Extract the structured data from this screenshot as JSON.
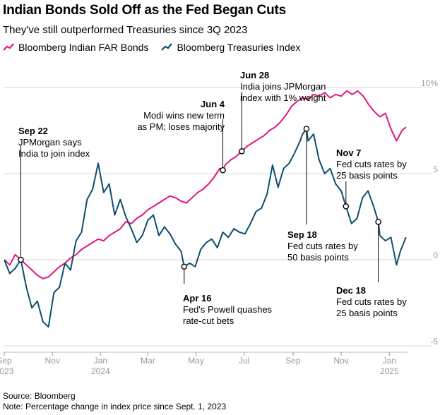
{
  "header": {
    "title": "Indian Bonds Sold Off as the Fed Began Cuts",
    "subtitle": "They've still outperformed Treasuries since 3Q 2023"
  },
  "footer": {
    "source": "Source: Bloomberg",
    "note": "Note: Percentage change in index price since Sept. 1, 2023"
  },
  "colors": {
    "india": "#e2167e",
    "treasuries": "#0e4e6e",
    "grid": "#d9d9d9",
    "tick": "#999999"
  },
  "chart_data": {
    "type": "line",
    "title": "Indian Bonds Sold Off as the Fed Began Cuts",
    "subtitle": "They've still outperformed Treasuries since 3Q 2023",
    "ylim": [
      -5,
      10
    ],
    "y_ticks": [
      10,
      5,
      0,
      -5
    ],
    "y_tick_labels": [
      "10%",
      "5",
      "0",
      "-5"
    ],
    "x_range": [
      "2023-09-01",
      "2025-01-24"
    ],
    "x_ticks": [
      {
        "date": "2023-09-01",
        "label": "Sep",
        "year": "2023"
      },
      {
        "date": "2023-11-01",
        "label": "Nov",
        "year": ""
      },
      {
        "date": "2024-01-01",
        "label": "Jan",
        "year": "2024"
      },
      {
        "date": "2024-03-01",
        "label": "Mar",
        "year": ""
      },
      {
        "date": "2024-05-01",
        "label": "May",
        "year": ""
      },
      {
        "date": "2024-07-01",
        "label": "Jul",
        "year": ""
      },
      {
        "date": "2024-09-01",
        "label": "Sep",
        "year": ""
      },
      {
        "date": "2024-11-01",
        "label": "Nov",
        "year": ""
      },
      {
        "date": "2025-01-01",
        "label": "Jan",
        "year": "2025"
      }
    ],
    "legend_position": "top-left",
    "series": [
      {
        "name": "Bloomberg Indian FAR Bonds",
        "color": "#e2167e",
        "points": [
          [
            "2023-09-01",
            0.0
          ],
          [
            "2023-09-08",
            -0.3
          ],
          [
            "2023-09-15",
            0.3
          ],
          [
            "2023-09-22",
            0.0
          ],
          [
            "2023-09-29",
            -0.3
          ],
          [
            "2023-10-06",
            -0.6
          ],
          [
            "2023-10-13",
            -0.9
          ],
          [
            "2023-10-20",
            -1.1
          ],
          [
            "2023-10-27",
            -1.0
          ],
          [
            "2023-11-03",
            -0.7
          ],
          [
            "2023-11-10",
            -0.4
          ],
          [
            "2023-11-17",
            -0.2
          ],
          [
            "2023-11-24",
            0.1
          ],
          [
            "2023-12-01",
            0.3
          ],
          [
            "2023-12-08",
            0.6
          ],
          [
            "2023-12-15",
            0.8
          ],
          [
            "2023-12-22",
            1.0
          ],
          [
            "2023-12-29",
            1.2
          ],
          [
            "2024-01-05",
            1.1
          ],
          [
            "2024-01-12",
            1.4
          ],
          [
            "2024-01-19",
            1.6
          ],
          [
            "2024-01-26",
            1.8
          ],
          [
            "2024-02-02",
            2.2
          ],
          [
            "2024-02-09",
            2.1
          ],
          [
            "2024-02-16",
            2.4
          ],
          [
            "2024-02-23",
            2.6
          ],
          [
            "2024-03-01",
            2.9
          ],
          [
            "2024-03-08",
            3.1
          ],
          [
            "2024-03-15",
            3.3
          ],
          [
            "2024-03-22",
            3.5
          ],
          [
            "2024-03-29",
            3.7
          ],
          [
            "2024-04-05",
            3.6
          ],
          [
            "2024-04-12",
            3.4
          ],
          [
            "2024-04-19",
            3.3
          ],
          [
            "2024-04-26",
            3.6
          ],
          [
            "2024-05-03",
            3.9
          ],
          [
            "2024-05-10",
            4.1
          ],
          [
            "2024-05-17",
            4.4
          ],
          [
            "2024-05-24",
            4.8
          ],
          [
            "2024-05-31",
            5.3
          ],
          [
            "2024-06-04",
            5.2
          ],
          [
            "2024-06-07",
            5.5
          ],
          [
            "2024-06-14",
            5.8
          ],
          [
            "2024-06-21",
            6.0
          ],
          [
            "2024-06-28",
            6.3
          ],
          [
            "2024-07-05",
            6.6
          ],
          [
            "2024-07-12",
            6.8
          ],
          [
            "2024-07-19",
            7.0
          ],
          [
            "2024-07-26",
            7.2
          ],
          [
            "2024-08-02",
            7.5
          ],
          [
            "2024-08-09",
            7.7
          ],
          [
            "2024-08-16",
            8.0
          ],
          [
            "2024-08-23",
            8.4
          ],
          [
            "2024-08-30",
            8.9
          ],
          [
            "2024-09-06",
            9.2
          ],
          [
            "2024-09-13",
            9.4
          ],
          [
            "2024-09-20",
            9.3
          ],
          [
            "2024-09-27",
            9.6
          ],
          [
            "2024-10-04",
            9.5
          ],
          [
            "2024-10-11",
            9.7
          ],
          [
            "2024-10-18",
            9.4
          ],
          [
            "2024-10-25",
            9.6
          ],
          [
            "2024-11-01",
            9.5
          ],
          [
            "2024-11-08",
            9.8
          ],
          [
            "2024-11-15",
            9.6
          ],
          [
            "2024-11-22",
            9.8
          ],
          [
            "2024-11-29",
            9.5
          ],
          [
            "2024-12-06",
            9.0
          ],
          [
            "2024-12-13",
            8.6
          ],
          [
            "2024-12-20",
            8.3
          ],
          [
            "2024-12-27",
            8.5
          ],
          [
            "2025-01-03",
            7.6
          ],
          [
            "2025-01-10",
            6.9
          ],
          [
            "2025-01-17",
            7.5
          ],
          [
            "2025-01-22",
            7.7
          ]
        ]
      },
      {
        "name": "Bloomberg Treasuries Index",
        "color": "#0e4e6e",
        "points": [
          [
            "2023-09-01",
            0.0
          ],
          [
            "2023-09-08",
            -0.8
          ],
          [
            "2023-09-15",
            -0.5
          ],
          [
            "2023-09-22",
            0.0
          ],
          [
            "2023-09-29",
            -1.6
          ],
          [
            "2023-10-06",
            -2.8
          ],
          [
            "2023-10-13",
            -2.4
          ],
          [
            "2023-10-20",
            -3.6
          ],
          [
            "2023-10-27",
            -3.9
          ],
          [
            "2023-11-03",
            -1.9
          ],
          [
            "2023-11-10",
            -1.6
          ],
          [
            "2023-11-17",
            -0.2
          ],
          [
            "2023-11-24",
            -0.6
          ],
          [
            "2023-12-01",
            1.1
          ],
          [
            "2023-12-08",
            1.6
          ],
          [
            "2023-12-15",
            3.5
          ],
          [
            "2023-12-22",
            4.1
          ],
          [
            "2023-12-29",
            5.6
          ],
          [
            "2024-01-05",
            3.9
          ],
          [
            "2024-01-12",
            4.4
          ],
          [
            "2024-01-19",
            2.6
          ],
          [
            "2024-01-26",
            3.5
          ],
          [
            "2024-02-02",
            2.5
          ],
          [
            "2024-02-09",
            1.8
          ],
          [
            "2024-02-16",
            1.0
          ],
          [
            "2024-02-23",
            1.4
          ],
          [
            "2024-03-01",
            2.3
          ],
          [
            "2024-03-08",
            2.6
          ],
          [
            "2024-03-15",
            1.4
          ],
          [
            "2024-03-22",
            1.9
          ],
          [
            "2024-03-29",
            1.5
          ],
          [
            "2024-04-05",
            0.9
          ],
          [
            "2024-04-12",
            0.5
          ],
          [
            "2024-04-16",
            -0.4
          ],
          [
            "2024-04-23",
            -0.2
          ],
          [
            "2024-04-30",
            -0.4
          ],
          [
            "2024-05-07",
            0.6
          ],
          [
            "2024-05-14",
            1.0
          ],
          [
            "2024-05-21",
            1.2
          ],
          [
            "2024-05-28",
            0.7
          ],
          [
            "2024-06-04",
            1.6
          ],
          [
            "2024-06-11",
            1.3
          ],
          [
            "2024-06-18",
            1.8
          ],
          [
            "2024-06-25",
            1.6
          ],
          [
            "2024-07-02",
            1.5
          ],
          [
            "2024-07-09",
            2.1
          ],
          [
            "2024-07-16",
            2.8
          ],
          [
            "2024-07-23",
            3.0
          ],
          [
            "2024-07-30",
            3.8
          ],
          [
            "2024-08-06",
            5.5
          ],
          [
            "2024-08-13",
            4.2
          ],
          [
            "2024-08-20",
            5.3
          ],
          [
            "2024-08-27",
            5.6
          ],
          [
            "2024-09-03",
            6.2
          ],
          [
            "2024-09-10",
            6.9
          ],
          [
            "2024-09-13",
            7.3
          ],
          [
            "2024-09-18",
            7.6
          ],
          [
            "2024-09-20",
            6.9
          ],
          [
            "2024-09-27",
            7.3
          ],
          [
            "2024-10-04",
            5.8
          ],
          [
            "2024-10-11",
            5.0
          ],
          [
            "2024-10-18",
            5.3
          ],
          [
            "2024-10-25",
            4.4
          ],
          [
            "2024-11-01",
            4.0
          ],
          [
            "2024-11-07",
            3.1
          ],
          [
            "2024-11-14",
            2.1
          ],
          [
            "2024-11-21",
            2.4
          ],
          [
            "2024-11-28",
            3.6
          ],
          [
            "2024-12-05",
            4.0
          ],
          [
            "2024-12-12",
            3.1
          ],
          [
            "2024-12-18",
            2.2
          ],
          [
            "2024-12-20",
            1.4
          ],
          [
            "2024-12-27",
            1.1
          ],
          [
            "2025-01-03",
            1.3
          ],
          [
            "2025-01-10",
            -0.3
          ],
          [
            "2025-01-15",
            0.5
          ],
          [
            "2025-01-22",
            1.3
          ]
        ]
      }
    ],
    "annotations": [
      {
        "date": "2023-09-22",
        "series": "Bloomberg Indian FAR Bonds",
        "head": "Sep 22",
        "lines": [
          "JPMorgan says",
          "India to join index"
        ]
      },
      {
        "date": "2024-06-04",
        "series": "Bloomberg Indian FAR Bonds",
        "head": "Jun 4",
        "lines": [
          "Modi wins new term",
          "as PM; loses majority"
        ]
      },
      {
        "date": "2024-06-28",
        "series": "Bloomberg Indian FAR Bonds",
        "head": "Jun 28",
        "lines": [
          "India joins JPMorgan",
          "index with 1% weight"
        ]
      },
      {
        "date": "2024-04-16",
        "series": "Bloomberg Treasuries Index",
        "head": "Apr 16",
        "lines": [
          "Fed's Powell quashes",
          "rate-cut bets"
        ]
      },
      {
        "date": "2024-09-18",
        "series": "Bloomberg Treasuries Index",
        "head": "Sep 18",
        "lines": [
          "Fed cuts rates by",
          "50 basis points"
        ]
      },
      {
        "date": "2024-11-07",
        "series": "Bloomberg Treasuries Index",
        "head": "Nov 7",
        "lines": [
          "Fed cuts rates by",
          "25 basis points"
        ]
      },
      {
        "date": "2024-12-18",
        "series": "Bloomberg Treasuries Index",
        "head": "Dec 18",
        "lines": [
          "Fed cuts rates by",
          "25 basis points"
        ]
      }
    ]
  }
}
